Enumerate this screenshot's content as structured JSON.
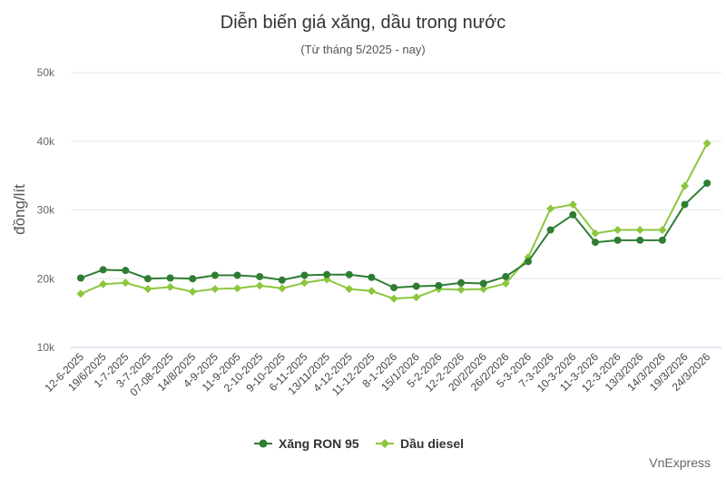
{
  "chart_data": {
    "type": "line",
    "title": "Diễn biến giá xăng, dầu trong nước",
    "subtitle": "(Từ tháng 5/2025 - nay)",
    "ylabel": "đồng/lít",
    "xlabel": "",
    "ylim": [
      10000,
      50000
    ],
    "yticks": [
      10000,
      20000,
      30000,
      40000,
      50000
    ],
    "ytick_labels": [
      "10k",
      "20k",
      "30k",
      "40k",
      "50k"
    ],
    "grid": true,
    "legend_position": "bottom",
    "categories": [
      "12-6-2025",
      "19/6/2025",
      "1-7-2025",
      "3-7-2025",
      "07-08-2025",
      "14/8/2025",
      "4-9-2025",
      "11-9-2005",
      "2-10-2025",
      "9-10-2025",
      "6-11-2025",
      "13/11/2025",
      "4-12-2025",
      "11-12-2025",
      "8-1-2026",
      "15/1/2026",
      "5-2-2026",
      "12-2-2026",
      "20/2/2026",
      "26/2/2026",
      "5-3-2026",
      "7-3-2026",
      "10-3-2026",
      "11-3-2026",
      "12-3-2026",
      "13/3/2026",
      "14/3/2026",
      "19/3/2026",
      "24/3/2026"
    ],
    "series": [
      {
        "name": "Xăng RON 95",
        "color": "#2e7d32",
        "values": [
          20100,
          21300,
          21200,
          20000,
          20100,
          20000,
          20500,
          20500,
          20300,
          19800,
          20500,
          20600,
          20600,
          20200,
          18700,
          18900,
          19000,
          19400,
          19300,
          20300,
          22500,
          27100,
          29300,
          25300,
          25600,
          25600,
          25600,
          30800,
          33900
        ]
      },
      {
        "name": "Dầu diesel",
        "color": "#8cc63f",
        "values": [
          17800,
          19200,
          19400,
          18500,
          18800,
          18100,
          18500,
          18600,
          19000,
          18600,
          19400,
          19900,
          18500,
          18200,
          17100,
          17300,
          18500,
          18400,
          18500,
          19300,
          23100,
          30200,
          30800,
          26600,
          27100,
          27100,
          27100,
          33500,
          39700
        ]
      }
    ]
  },
  "source": "VnExpress"
}
